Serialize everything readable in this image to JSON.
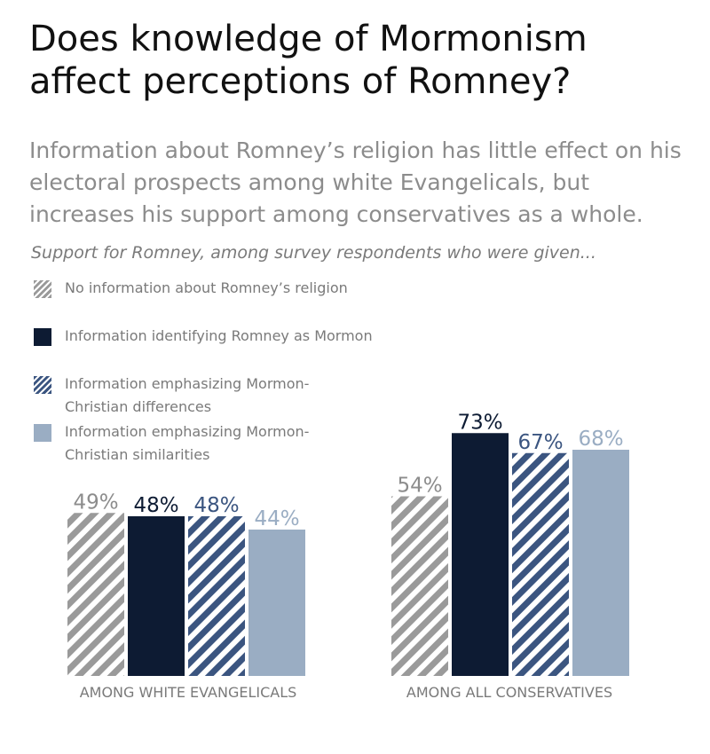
{
  "header": {
    "title": "Does knowledge of Mormonism affect perceptions of Romney?",
    "subtitle": "Information about Romney’s religion has little effect on his electoral prospects among white Evangelicals, but increases his support among conservatives as a whole.",
    "intro": "Support for Romney, among survey respondents who were given..."
  },
  "legend": [
    {
      "label": "No information about Romney’s religion",
      "swatch": "hatched-gray"
    },
    {
      "label": "Information identifying Romney as Mormon",
      "swatch": "solid-navy"
    },
    {
      "label": "Information emphasizing Mormon-Christian differences",
      "swatch": "hatched-blue"
    },
    {
      "label": "Information emphasizing Mormon-Christian similarities",
      "swatch": "solid-light-blue"
    }
  ],
  "colors": {
    "gray": "#9a9a9a",
    "navy": "#0d1b33",
    "blue": "#3b5580",
    "light_blue": "#9aadc3",
    "text_gray": "#8c8c8c"
  },
  "chart_data": {
    "type": "bar",
    "categories": [
      "AMONG WHITE EVANGELICALS",
      "AMONG ALL CONSERVATIVES"
    ],
    "series": [
      {
        "name": "No information about Romney’s religion",
        "values": [
          49,
          54
        ],
        "labels": [
          "49%",
          "54%"
        ],
        "color": "#9a9a9a",
        "hatched": true
      },
      {
        "name": "Information identifying Romney as Mormon",
        "values": [
          48,
          73
        ],
        "labels": [
          "48%",
          "73%"
        ],
        "color": "#0d1b33",
        "hatched": false
      },
      {
        "name": "Information emphasizing Mormon-Christian differences",
        "values": [
          48,
          67
        ],
        "labels": [
          "48%",
          "67%"
        ],
        "color": "#3b5580",
        "hatched": true
      },
      {
        "name": "Information emphasizing Mormon-Christian similarities",
        "values": [
          44,
          68
        ],
        "labels": [
          "44%",
          "68%"
        ],
        "color": "#9aadc3",
        "hatched": false
      }
    ],
    "ylim": [
      0,
      100
    ],
    "grid": false,
    "legend_position": "top-left"
  }
}
